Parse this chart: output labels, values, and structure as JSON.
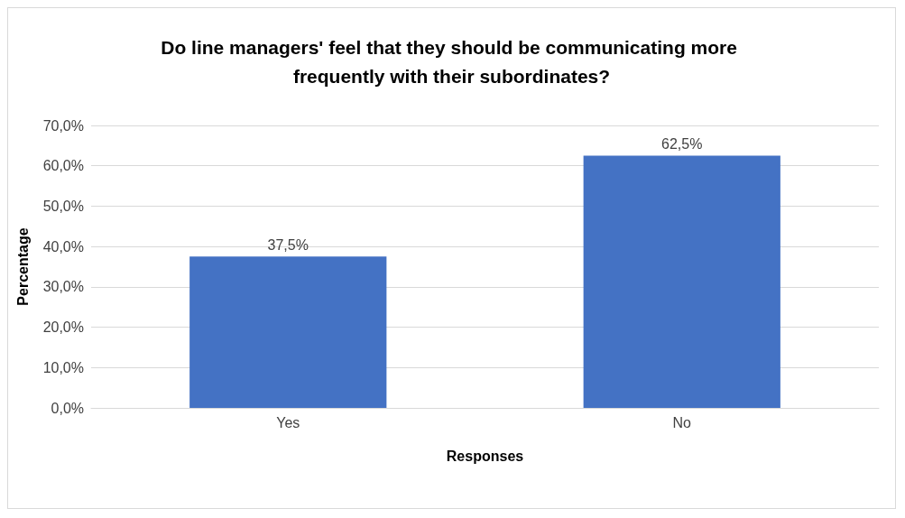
{
  "chart_data": {
    "type": "bar",
    "title": "Do line managers' feel that they should be communicating more frequently with their subordinates?",
    "xlabel": "Responses",
    "ylabel": "Percentage",
    "categories": [
      "Yes",
      "No"
    ],
    "values": [
      37.5,
      62.5
    ],
    "value_labels": [
      "37,5%",
      "62,5%"
    ],
    "color": "#4472c4",
    "ylim": [
      0,
      70
    ],
    "yticks": [
      {
        "value": 0,
        "label": "0,0%"
      },
      {
        "value": 10,
        "label": "10,0%"
      },
      {
        "value": 20,
        "label": "20,0%"
      },
      {
        "value": 30,
        "label": "30,0%"
      },
      {
        "value": 40,
        "label": "40,0%"
      },
      {
        "value": 50,
        "label": "50,0%"
      },
      {
        "value": 60,
        "label": "60,0%"
      },
      {
        "value": 70,
        "label": "70,0%"
      }
    ],
    "grid": "y"
  }
}
